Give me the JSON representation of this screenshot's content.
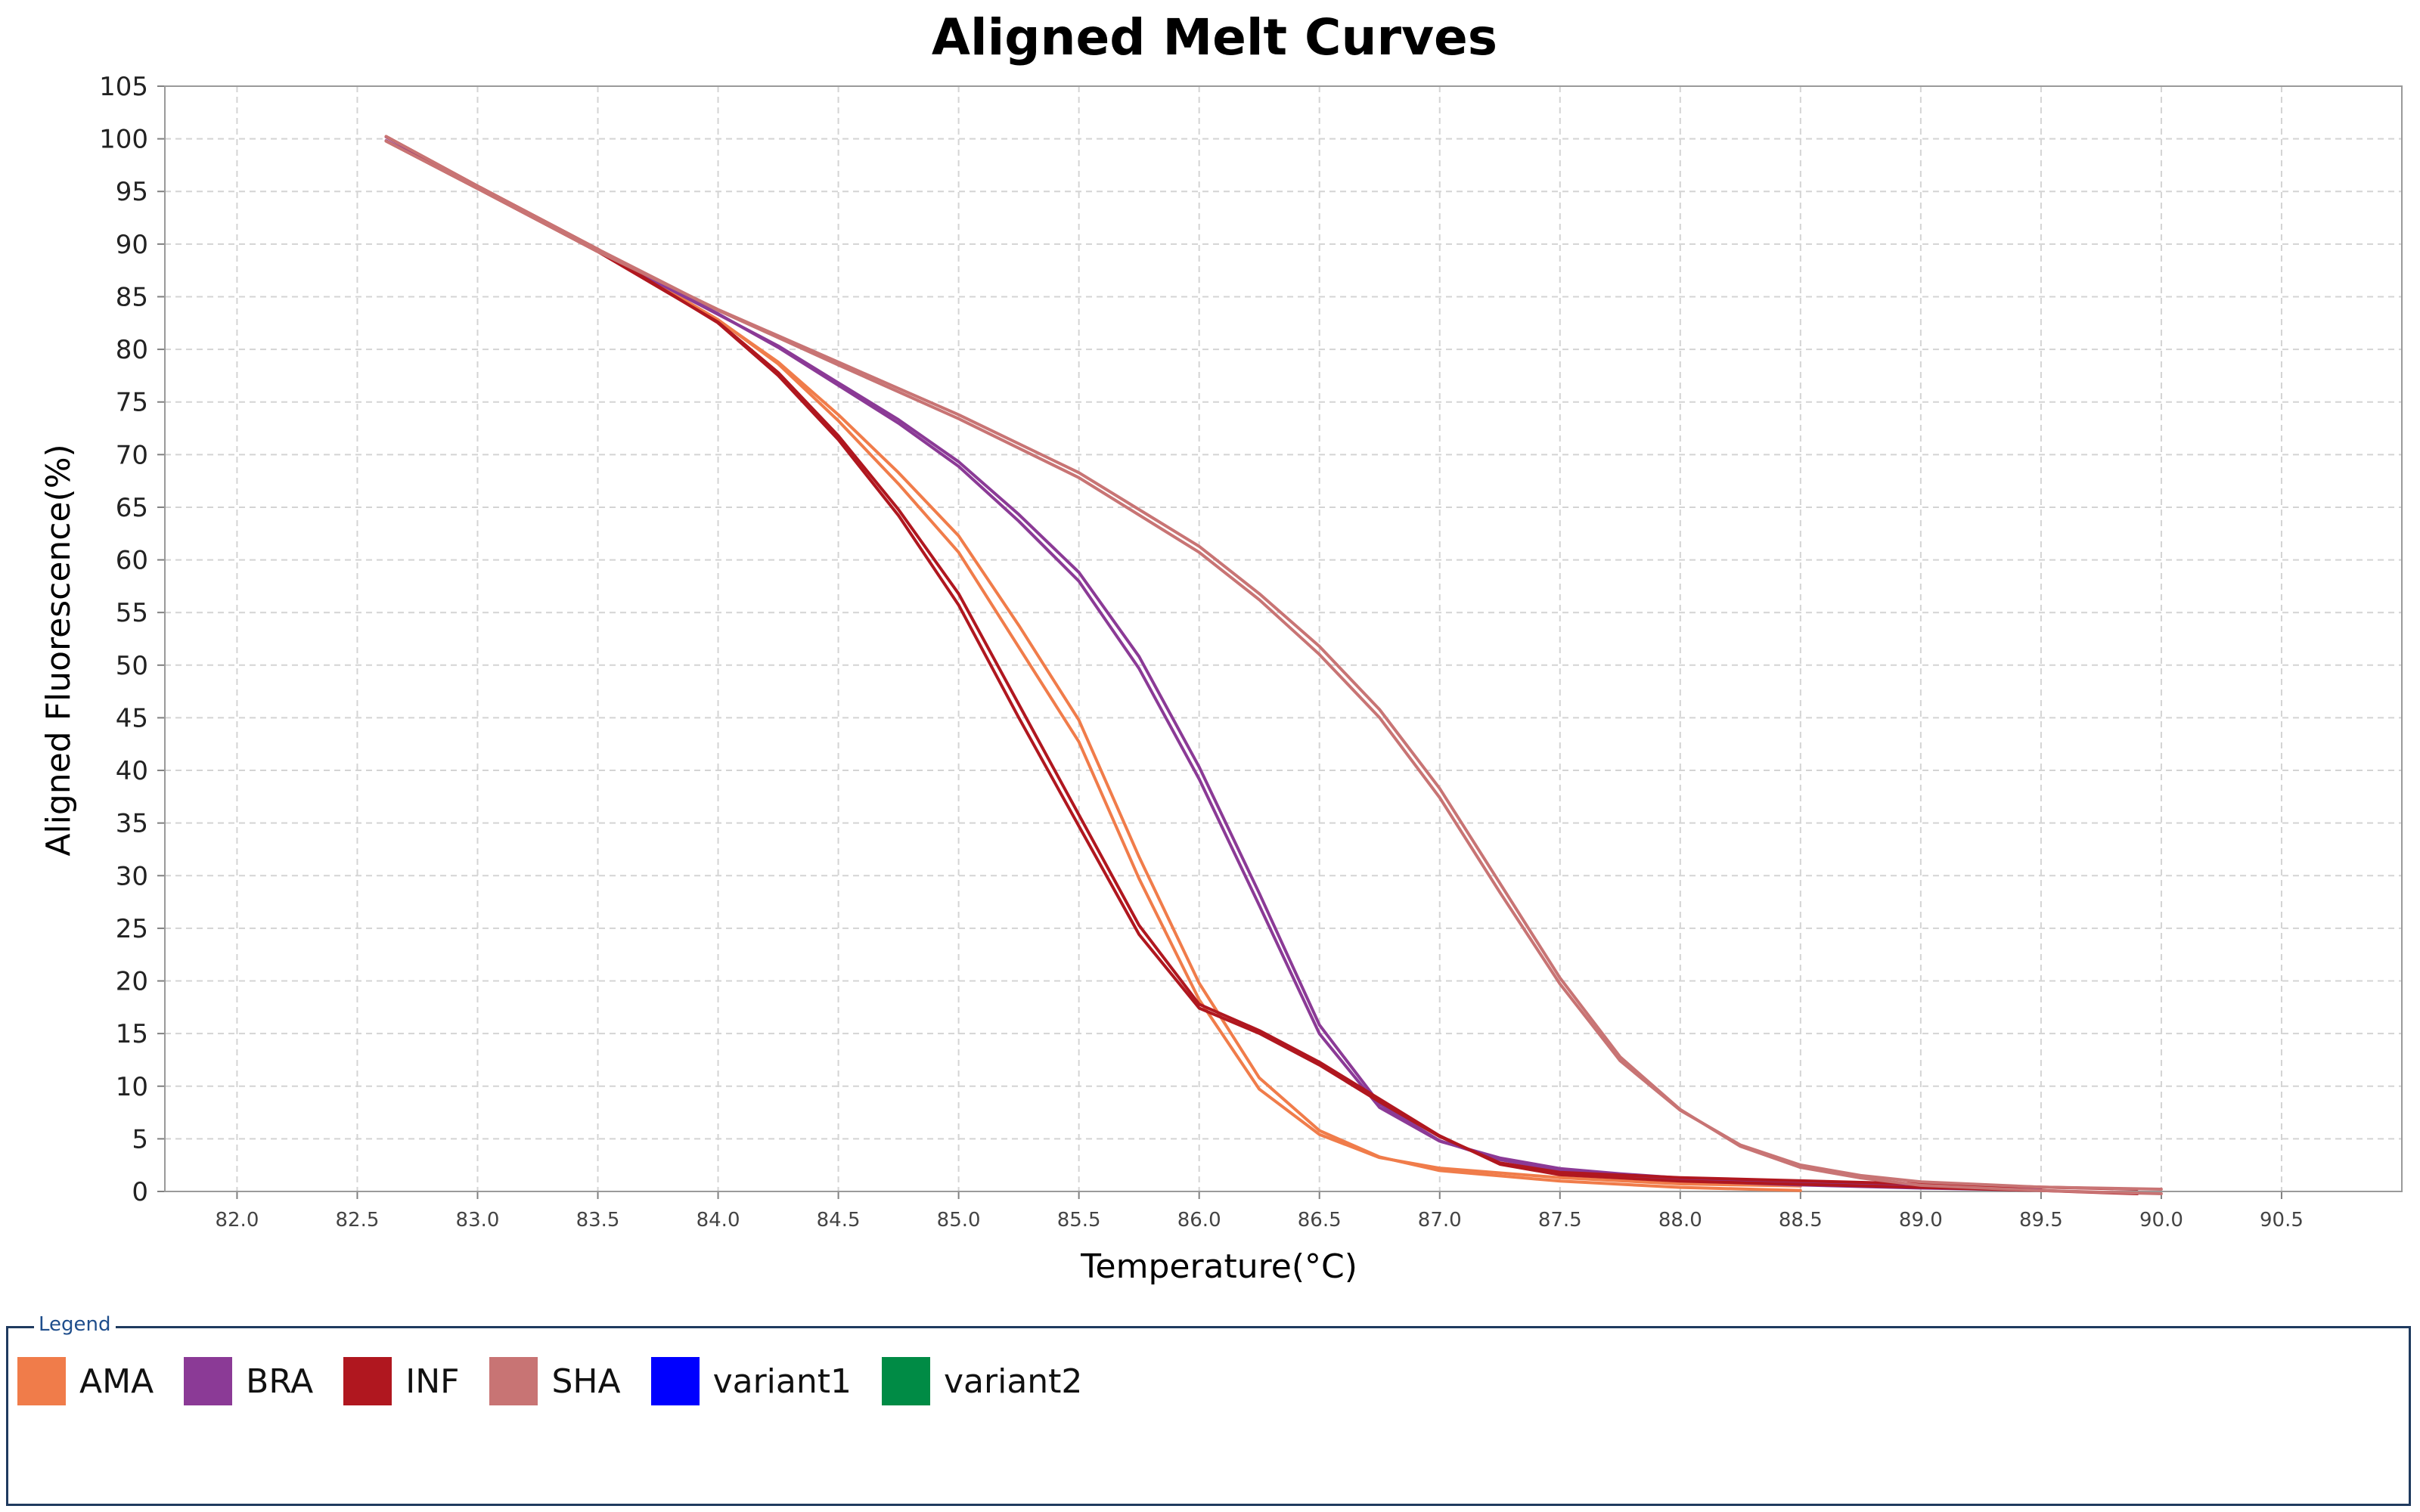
{
  "chart_data": {
    "type": "line",
    "title": "Aligned Melt Curves",
    "xlabel": "Temperature(°C)",
    "ylabel": "Aligned Fluorescence(%)",
    "xlim": [
      81.7,
      91.0
    ],
    "ylim": [
      0,
      105
    ],
    "grid": true,
    "legend_placement": "bottom",
    "xticks": [
      "82.0",
      "82.5",
      "83.0",
      "83.5",
      "84.0",
      "84.5",
      "85.0",
      "85.5",
      "86.0",
      "86.5",
      "87.0",
      "87.5",
      "88.0",
      "88.5",
      "89.0",
      "89.5",
      "90.0",
      "90.5"
    ],
    "yticks": [
      "0",
      "5",
      "10",
      "15",
      "20",
      "25",
      "30",
      "35",
      "40",
      "45",
      "50",
      "55",
      "60",
      "65",
      "70",
      "75",
      "80",
      "85",
      "90",
      "95",
      "100",
      "105"
    ],
    "series": [
      {
        "name": "AMA",
        "color": "#F07C4A",
        "offset": 0.3,
        "x": [
          82.62,
          83.0,
          83.5,
          84.0,
          84.25,
          84.5,
          84.75,
          85.0,
          85.25,
          85.5,
          85.75,
          86.0,
          86.25,
          86.5,
          86.75,
          87.0,
          87.5,
          88.0,
          88.5
        ],
        "y": [
          100,
          95.5,
          89.5,
          83,
          79,
          74,
          68.5,
          62.5,
          54,
          45,
          32,
          20,
          11,
          6,
          3.5,
          2.2,
          1.2,
          0.6,
          0.3
        ]
      },
      {
        "name": "AMA",
        "color": "#F07C4A",
        "offset": -0.3,
        "x": [
          82.62,
          83.0,
          83.5,
          84.0,
          84.25,
          84.5,
          84.75,
          85.0,
          85.25,
          85.5,
          85.75,
          86.0,
          86.25,
          86.5,
          86.75,
          87.0,
          87.5,
          88.0,
          88.5
        ],
        "y": [
          100,
          95.3,
          89.3,
          82.6,
          78.4,
          73,
          67,
          60.5,
          51.5,
          42.5,
          29.5,
          18,
          9.5,
          5.2,
          3,
          2,
          1.1,
          0.5,
          0.3
        ]
      },
      {
        "name": "BRA",
        "color": "#8B3A96",
        "offset": 0.25,
        "x": [
          82.62,
          83.0,
          83.5,
          84.0,
          84.25,
          84.5,
          84.75,
          85.0,
          85.25,
          85.5,
          85.75,
          86.0,
          86.25,
          86.5,
          86.75,
          87.0,
          87.25,
          87.5,
          87.75,
          88.0,
          88.5,
          89.0,
          89.5
        ],
        "y": [
          100,
          95.5,
          89.5,
          83.5,
          80.5,
          77,
          73.5,
          69.5,
          64.5,
          59,
          51,
          40.5,
          28.5,
          16,
          8.5,
          5,
          3.2,
          2.2,
          1.6,
          1.2,
          0.8,
          0.5,
          0.3
        ]
      },
      {
        "name": "BRA",
        "color": "#8B3A96",
        "offset": -0.25,
        "x": [
          82.62,
          83.0,
          83.5,
          84.0,
          84.25,
          84.5,
          84.75,
          85.0,
          85.25,
          85.5,
          85.75,
          86.0,
          86.25,
          86.5,
          86.75,
          87.0,
          87.25,
          87.5,
          87.75,
          88.0,
          88.5,
          89.0,
          89.5
        ],
        "y": [
          100,
          95.3,
          89.3,
          83.2,
          80,
          76.4,
          72.8,
          68.7,
          63.5,
          57.8,
          49.5,
          39,
          27,
          14.8,
          7.8,
          4.6,
          3,
          2,
          1.5,
          1.1,
          0.7,
          0.4,
          0.2
        ]
      },
      {
        "name": "INF",
        "color": "#B0171F",
        "offset": 0.3,
        "x": [
          82.62,
          83.0,
          83.5,
          84.0,
          84.25,
          84.5,
          84.75,
          85.0,
          85.25,
          85.5,
          85.75,
          86.0,
          86.25,
          86.5,
          86.75,
          87.0,
          87.25,
          87.5,
          88.0,
          88.5,
          89.0,
          89.5,
          89.9
        ],
        "y": [
          100,
          95.5,
          89.5,
          82.8,
          78,
          72,
          65,
          57,
          46.5,
          36,
          25.5,
          18,
          15.5,
          12.5,
          9,
          5.5,
          2.8,
          1.8,
          1.2,
          0.9,
          0.6,
          0.3,
          0
        ]
      },
      {
        "name": "INF",
        "color": "#B0171F",
        "offset": -0.3,
        "x": [
          82.62,
          83.0,
          83.5,
          84.0,
          84.25,
          84.5,
          84.75,
          85.0,
          85.25,
          85.5,
          85.75,
          86.0,
          86.25,
          86.5,
          86.75,
          87.0,
          87.25,
          87.5,
          88.0,
          88.5,
          89.0,
          89.5,
          89.9
        ],
        "y": [
          100,
          95.3,
          89.3,
          82.3,
          77.3,
          71.2,
          64,
          55.5,
          44.8,
          34.5,
          24.2,
          17.2,
          14.8,
          11.8,
          8.3,
          5,
          2.5,
          1.6,
          1.1,
          0.8,
          0.5,
          0.2,
          0
        ]
      },
      {
        "name": "SHA",
        "color": "#C87474",
        "offset": 0.3,
        "x": [
          82.62,
          83.0,
          83.5,
          84.0,
          84.5,
          85.0,
          85.5,
          86.0,
          86.25,
          86.5,
          86.75,
          87.0,
          87.25,
          87.5,
          87.75,
          88.0,
          88.25,
          88.5,
          88.75,
          89.0,
          89.5,
          90.0
        ],
        "y": [
          100,
          95.5,
          89.5,
          84,
          79,
          74,
          68.5,
          61.5,
          57,
          52,
          46,
          38.5,
          29.5,
          20.5,
          13,
          8,
          4.5,
          2.5,
          1.5,
          0.8,
          0.3,
          0
        ]
      },
      {
        "name": "SHA",
        "color": "#C87474",
        "offset": -0.3,
        "x": [
          82.62,
          83.0,
          83.5,
          84.0,
          84.5,
          85.0,
          85.5,
          86.0,
          86.25,
          86.5,
          86.75,
          87.0,
          87.25,
          87.5,
          87.75,
          88.0,
          88.25,
          88.5,
          88.75,
          89.0,
          89.5,
          90.0
        ],
        "y": [
          100,
          95.3,
          89.3,
          83.5,
          78.3,
          73.2,
          67.6,
          60.5,
          56,
          50.8,
          44.8,
          37.2,
          28.2,
          19.5,
          12.2,
          7.5,
          4.2,
          2.3,
          1.3,
          0.7,
          0.2,
          0
        ]
      }
    ]
  },
  "legend": {
    "title": "Legend",
    "items": [
      {
        "label": "AMA",
        "color": "#F07C4A"
      },
      {
        "label": "BRA",
        "color": "#8B3A96"
      },
      {
        "label": "INF",
        "color": "#B0171F"
      },
      {
        "label": "SHA",
        "color": "#C87474"
      },
      {
        "label": "variant1",
        "color": "#0000FF"
      },
      {
        "label": "variant2",
        "color": "#008B45"
      }
    ]
  }
}
